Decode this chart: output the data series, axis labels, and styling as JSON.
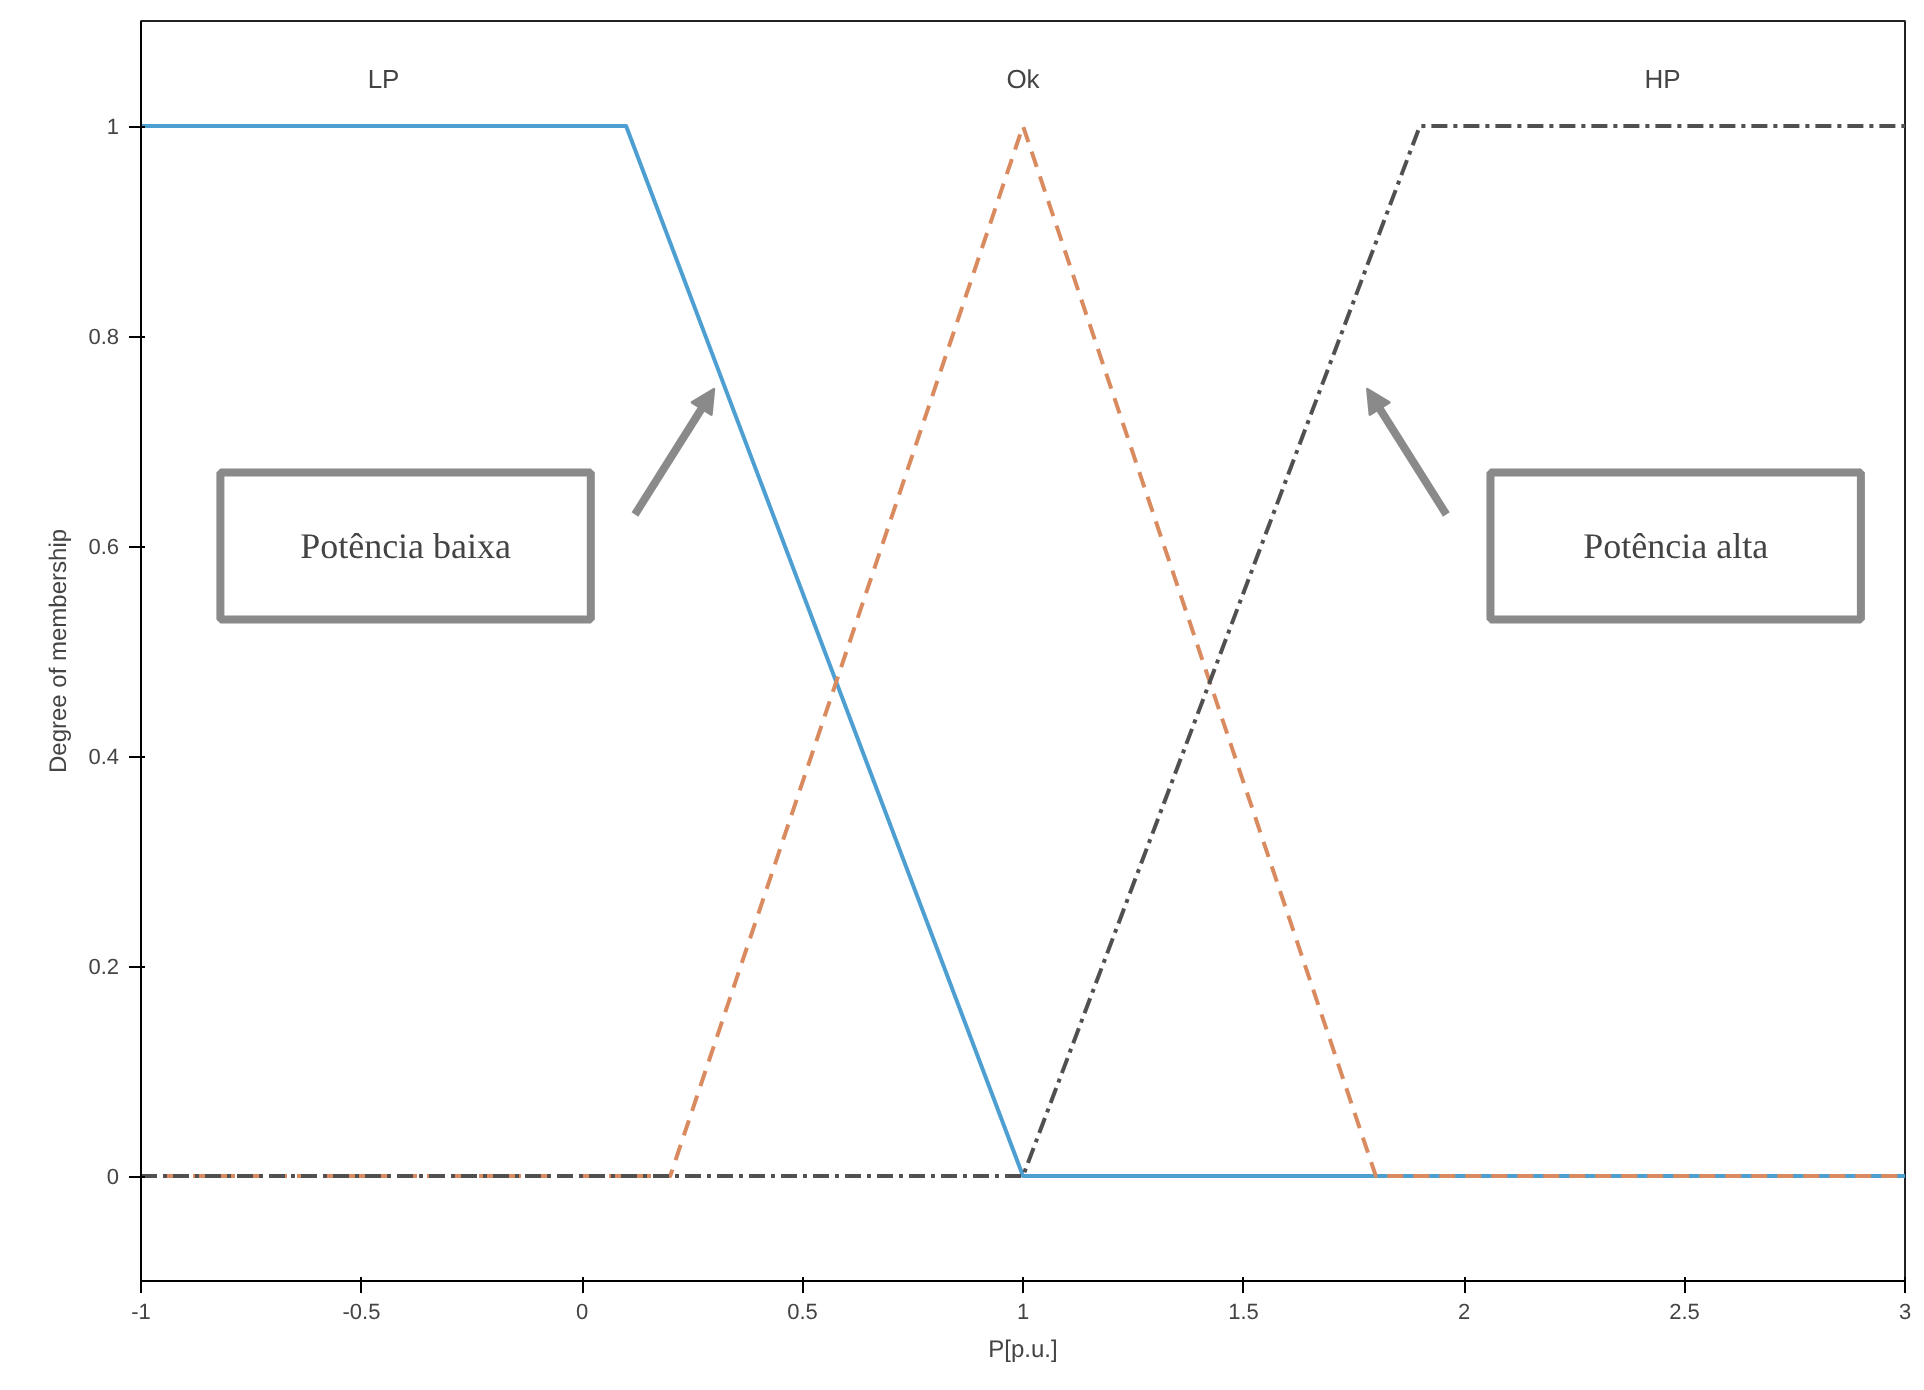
{
  "chart_data": {
    "type": "line",
    "xlabel": "P[p.u.]",
    "ylabel": "Degree of membership",
    "xlim": [
      -1,
      3
    ],
    "ylim": [
      -0.1,
      1.1
    ],
    "xticks": [
      -1,
      -0.5,
      0,
      0.5,
      1,
      1.5,
      2,
      2.5,
      3
    ],
    "yticks": [
      0,
      0.2,
      0.4,
      0.6,
      0.8,
      1
    ],
    "grid": false,
    "legend": false,
    "marker": "none",
    "series": [
      {
        "name": "LP",
        "color": "#4d9fd2",
        "line_style": "solid",
        "x": [
          -1,
          0.1,
          1,
          3
        ],
        "values": [
          1,
          1,
          0,
          0
        ]
      },
      {
        "name": "Ok",
        "color": "#d98a5e",
        "line_style": "dashed",
        "x": [
          -1,
          0.2,
          1,
          1.8,
          3
        ],
        "values": [
          0,
          0,
          1,
          0,
          0
        ]
      },
      {
        "name": "HP",
        "color": "#505050",
        "line_style": "dashdot",
        "x": [
          -1,
          1,
          1.9,
          3
        ],
        "values": [
          0,
          0,
          1,
          1
        ]
      }
    ],
    "annotations": [
      "Potência baixa",
      "Potência alta"
    ]
  }
}
